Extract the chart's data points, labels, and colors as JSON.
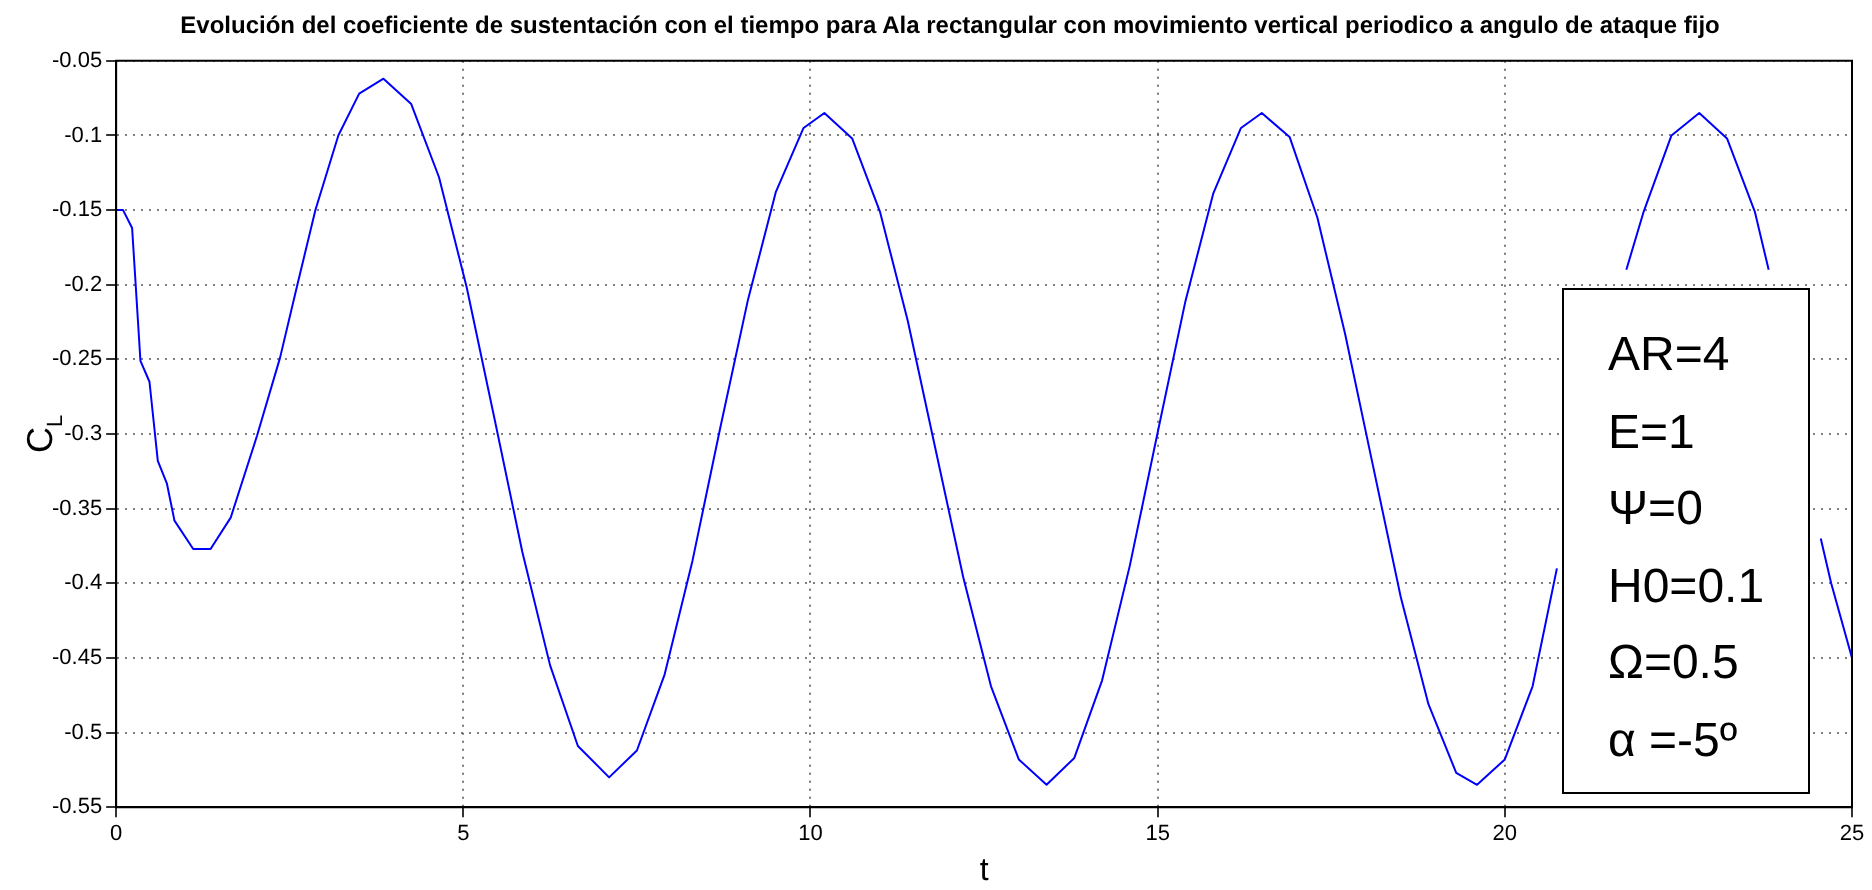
{
  "chart_data": {
    "type": "line",
    "title": "Evolución del coeficiente de sustentación con el tiempo para Ala rectangular con movimiento vertical periodico a angulo de ataque fijo",
    "xlabel": "t",
    "ylabel": "C$_{L}$",
    "x": [
      0,
      0.1,
      0.23,
      0.35,
      0.48,
      0.6,
      0.73,
      0.84,
      1.11,
      1.36,
      1.65,
      2.03,
      2.36,
      2.61,
      2.87,
      3.2,
      3.5,
      3.85,
      4.25,
      4.65,
      5.05,
      5.45,
      5.85,
      6.25,
      6.65,
      7.1,
      7.5,
      7.9,
      8.3,
      8.7,
      9.1,
      9.5,
      9.9,
      10.2,
      10.6,
      11.0,
      11.4,
      11.8,
      12.2,
      12.6,
      13.0,
      13.4,
      13.8,
      14.2,
      14.6,
      15.0,
      15.4,
      15.8,
      16.2,
      16.5,
      16.9,
      17.3,
      17.7,
      18.1,
      18.5,
      18.9,
      19.3,
      19.6,
      20.0,
      20.4,
      20.75,
      21.2,
      21.75,
      22.0,
      22.4,
      22.8,
      23.2,
      23.6,
      23.8,
      24.1,
      24.55,
      24.7,
      25
    ],
    "series": [
      {
        "color": "#0000ff",
        "values": [
          -0.15,
          -0.15,
          -0.162,
          -0.251,
          -0.265,
          -0.318,
          -0.333,
          -0.358,
          -0.377,
          -0.377,
          -0.356,
          -0.301,
          -0.249,
          -0.2,
          -0.15,
          -0.1,
          -0.072,
          -0.062,
          -0.079,
          -0.128,
          -0.202,
          -0.29,
          -0.379,
          -0.455,
          -0.509,
          -0.53,
          -0.512,
          -0.461,
          -0.385,
          -0.296,
          -0.21,
          -0.138,
          -0.095,
          -0.085,
          -0.102,
          -0.151,
          -0.224,
          -0.31,
          -0.396,
          -0.469,
          -0.518,
          -0.535,
          -0.517,
          -0.465,
          -0.388,
          -0.299,
          -0.211,
          -0.139,
          -0.095,
          -0.085,
          -0.101,
          -0.155,
          -0.233,
          -0.321,
          -0.409,
          -0.481,
          -0.527,
          -0.535,
          -0.518,
          -0.469,
          -0.39,
          null,
          -0.19,
          -0.151,
          -0.1,
          -0.085,
          -0.102,
          -0.151,
          -0.19,
          null,
          -0.37,
          -0.4,
          -0.45
        ]
      }
    ],
    "xlim": [
      0,
      25
    ],
    "xticks": [
      0,
      5,
      10,
      15,
      20,
      25
    ],
    "ylim": [
      -0.55,
      -0.05
    ],
    "yticks": [
      -0.55,
      -0.5,
      -0.45,
      -0.4,
      -0.35,
      -0.3,
      -0.25,
      -0.2,
      -0.15,
      -0.1,
      -0.05
    ],
    "grid": true,
    "legend": false,
    "marker": "none",
    "line_style": "solid",
    "annotations": [
      "AR=4",
      "E=1",
      "Ψ=0",
      "H0=0.1",
      "Ω=0.5",
      "α =-5º"
    ]
  }
}
